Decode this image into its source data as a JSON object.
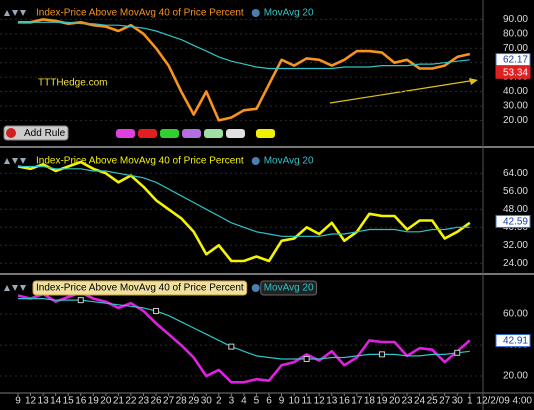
{
  "toolbar": {
    "button": "Add Rule"
  },
  "chart_data": [
    {
      "type": "line",
      "annotations": [
        "TTTHedge.com"
      ],
      "ylim": [
        5,
        100
      ],
      "yticks": [
        {
          "value": 90,
          "label": "90.00"
        },
        {
          "value": 80,
          "label": "80.00"
        },
        {
          "value": 70,
          "label": "70.00"
        },
        {
          "value": 60,
          "label": "60.00"
        },
        {
          "value": 50,
          "label": "50.00"
        },
        {
          "value": 40,
          "label": "40.00"
        },
        {
          "value": 30,
          "label": "30.00"
        },
        {
          "value": 20,
          "label": "20.00"
        }
      ],
      "grid": true,
      "last_values": [
        {
          "value": 62.17,
          "color": "#3a6fd8"
        },
        {
          "value": 53.34,
          "color": "#e02020"
        }
      ],
      "series": [
        {
          "name": "Index-Price Above  MovAvg 40 of Price Percent",
          "color": "#f7931e",
          "values": [
            88,
            88,
            90,
            89,
            87,
            88,
            86,
            85,
            82,
            86,
            80,
            70,
            58,
            40,
            24,
            40,
            20,
            22,
            27,
            28,
            45,
            62,
            58,
            63,
            62,
            58,
            62,
            68,
            68,
            67,
            60,
            62,
            56,
            56,
            58,
            64,
            66
          ]
        },
        {
          "name": "MovAvg 20",
          "color": "#2ec4c8",
          "values": [
            88,
            88,
            88,
            88,
            88,
            87,
            87,
            86,
            86,
            85,
            84,
            82,
            79,
            76,
            72,
            68,
            64,
            61,
            59,
            57,
            56,
            56,
            56,
            56,
            56,
            56,
            57,
            57,
            57,
            58,
            58,
            58,
            59,
            59,
            60,
            61,
            62
          ]
        }
      ]
    },
    {
      "type": "line",
      "ylim": [
        21,
        73
      ],
      "yticks": [
        {
          "value": 64,
          "label": "64.00"
        },
        {
          "value": 56,
          "label": "56.00"
        },
        {
          "value": 48,
          "label": "48.00"
        },
        {
          "value": 40,
          "label": "40.00"
        },
        {
          "value": 32,
          "label": "32.00"
        },
        {
          "value": 24,
          "label": "24.00"
        }
      ],
      "grid": true,
      "last_values": [
        {
          "value": 42.59,
          "color": "#3a6fd8"
        }
      ],
      "series": [
        {
          "name": "Index-Price Above  MovAvg 40 of Price Percent",
          "color": "#f4f400",
          "values": [
            67,
            66,
            68,
            65,
            67,
            69,
            66,
            64,
            60,
            63,
            58,
            52,
            48,
            44,
            38,
            28,
            32,
            25,
            25,
            27,
            25,
            34,
            35,
            40,
            37,
            42,
            34,
            38,
            46,
            45,
            45,
            39,
            43,
            43,
            35,
            38,
            42
          ]
        },
        {
          "name": "MovAvg 20",
          "color": "#2ec4c8",
          "values": [
            67,
            67,
            67,
            66,
            66,
            66,
            65,
            65,
            64,
            63,
            62,
            60,
            57,
            54,
            51,
            48,
            45,
            42,
            40,
            38,
            37,
            36,
            36,
            36,
            36,
            37,
            37,
            38,
            39,
            39,
            39,
            38,
            38,
            39,
            39,
            40,
            40
          ]
        }
      ]
    },
    {
      "type": "line",
      "ylim": [
        11,
        82
      ],
      "legend_style": "boxed",
      "yticks": [
        {
          "value": 60,
          "label": "60.00"
        },
        {
          "value": 40,
          "label": "40.00"
        },
        {
          "value": 20,
          "label": "20.00"
        }
      ],
      "grid": true,
      "last_values": [
        {
          "value": 42.91,
          "color": "#3a6fd8"
        }
      ],
      "categories": [
        "9",
        "12",
        "13",
        "14",
        "15",
        "16",
        "19",
        "20",
        "21",
        "22",
        "23",
        "26",
        "27",
        "28",
        "29",
        "30",
        "2",
        "3",
        "4",
        "5",
        "6",
        "9",
        "10",
        "11",
        "12",
        "13",
        "16",
        "17",
        "18",
        "19",
        "20",
        "23",
        "24",
        "25",
        "27",
        "30",
        "1"
      ],
      "date_label": "12/2/09 4:00",
      "series": [
        {
          "name": "Index-Price Above  MovAvg 40 of Price Percent",
          "color": "#e020e0",
          "values": [
            72,
            70,
            73,
            68,
            71,
            74,
            70,
            68,
            64,
            67,
            62,
            54,
            47,
            40,
            32,
            20,
            24,
            16,
            16,
            18,
            17,
            27,
            29,
            34,
            30,
            36,
            27,
            32,
            43,
            42,
            42,
            33,
            38,
            37,
            29,
            36,
            43
          ]
        },
        {
          "name": "MovAvg 20",
          "color": "#2ec4c8",
          "marker": "square",
          "values": [
            70,
            70,
            70,
            69,
            69,
            69,
            68,
            67,
            66,
            65,
            64,
            62,
            59,
            55,
            51,
            47,
            43,
            39,
            36,
            33,
            32,
            31,
            31,
            31,
            31,
            32,
            32,
            33,
            34,
            34,
            34,
            33,
            33,
            34,
            34,
            35,
            36
          ]
        }
      ]
    }
  ]
}
